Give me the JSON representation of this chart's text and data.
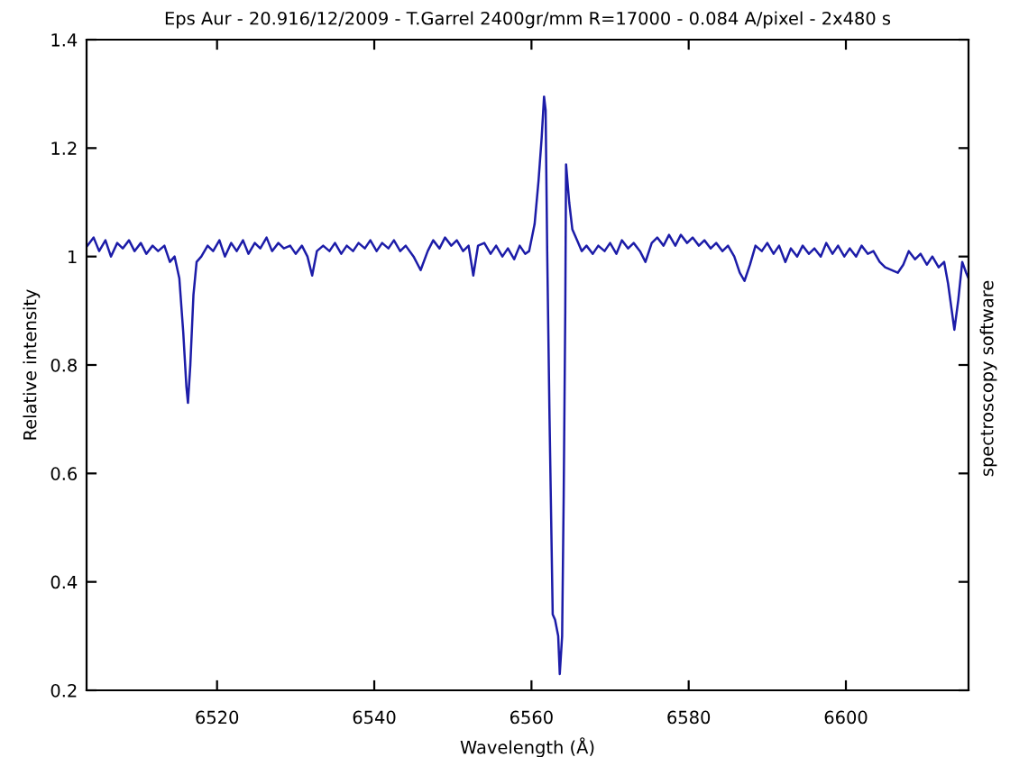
{
  "chart_data": {
    "type": "line",
    "title": "Eps Aur - 20.916/12/2009 - T.Garrel 2400gr/mm R=17000 - 0.084 A/pixel - 2x480 s",
    "xlabel": "Wavelength (Å)",
    "ylabel": "Relative intensity",
    "annotations": [
      "spectroscopy software"
    ],
    "x": [
      6503.5,
      6504.3,
      6505,
      6505.8,
      6506.5,
      6507.3,
      6508,
      6508.8,
      6509.5,
      6510.3,
      6511,
      6511.8,
      6512.5,
      6513.3,
      6514,
      6514.6,
      6515.2,
      6515.7,
      6516.1,
      6516.3,
      6516.6,
      6517.0,
      6517.4,
      6518,
      6518.8,
      6519.5,
      6520.3,
      6521,
      6521.8,
      6522.5,
      6523.3,
      6524,
      6524.8,
      6525.5,
      6526.3,
      6527,
      6527.8,
      6528.5,
      6529.3,
      6530,
      6530.8,
      6531.5,
      6532.1,
      6532.7,
      6533.5,
      6534.3,
      6535,
      6535.8,
      6536.5,
      6537.3,
      6538,
      6538.8,
      6539.5,
      6540.3,
      6541,
      6541.8,
      6542.5,
      6543.3,
      6544,
      6545,
      6545.9,
      6546.8,
      6547.5,
      6548.3,
      6549,
      6549.8,
      6550.5,
      6551.3,
      6552,
      6552.6,
      6553.2,
      6554,
      6554.8,
      6555.5,
      6556.3,
      6557,
      6557.8,
      6558.5,
      6559.2,
      6559.7,
      6560.4,
      6560.9,
      6561.3,
      6561.6,
      6561.8,
      6562.0,
      6562.3,
      6562.7,
      6563.0,
      6563.4,
      6563.6,
      6563.9,
      6564.1,
      6564.3,
      6564.4,
      6564.8,
      6565.2,
      6565.8,
      6566.4,
      6567,
      6567.8,
      6568.5,
      6569.3,
      6570,
      6570.8,
      6571.5,
      6572.3,
      6573,
      6573.8,
      6574.5,
      6575.3,
      6576,
      6576.8,
      6577.5,
      6578.3,
      6579,
      6579.8,
      6580.5,
      6581.3,
      6582,
      6582.8,
      6583.5,
      6584.3,
      6585,
      6585.8,
      6586.5,
      6587.1,
      6587.8,
      6588.5,
      6589.3,
      6590,
      6590.8,
      6591.5,
      6592.3,
      6593,
      6593.8,
      6594.5,
      6595.3,
      6596,
      6596.8,
      6597.5,
      6598.3,
      6599,
      6599.8,
      6600.5,
      6601.3,
      6602,
      6602.8,
      6603.5,
      6604.3,
      6605,
      6605.8,
      6606.6,
      6607.3,
      6608,
      6608.8,
      6609.5,
      6610.3,
      6611,
      6611.8,
      6612.5,
      6613,
      6613.8,
      6614.3,
      6614.8,
      6615.3,
      6615.6
    ],
    "series": [
      {
        "color": "#1c1ca8",
        "values": [
          1.02,
          1.035,
          1.01,
          1.03,
          1.0,
          1.025,
          1.015,
          1.03,
          1.01,
          1.025,
          1.005,
          1.02,
          1.01,
          1.02,
          0.99,
          1.0,
          0.96,
          0.86,
          0.76,
          0.73,
          0.8,
          0.93,
          0.99,
          1.0,
          1.02,
          1.01,
          1.03,
          1.0,
          1.025,
          1.01,
          1.03,
          1.005,
          1.025,
          1.015,
          1.035,
          1.01,
          1.025,
          1.015,
          1.02,
          1.005,
          1.02,
          1.0,
          0.965,
          1.01,
          1.02,
          1.01,
          1.025,
          1.005,
          1.02,
          1.01,
          1.025,
          1.015,
          1.03,
          1.01,
          1.025,
          1.015,
          1.03,
          1.01,
          1.02,
          1.0,
          0.975,
          1.01,
          1.03,
          1.015,
          1.035,
          1.02,
          1.03,
          1.01,
          1.02,
          0.965,
          1.02,
          1.025,
          1.005,
          1.02,
          1.0,
          1.015,
          0.995,
          1.02,
          1.005,
          1.01,
          1.06,
          1.14,
          1.22,
          1.295,
          1.27,
          1.01,
          0.7,
          0.34,
          0.33,
          0.3,
          0.23,
          0.3,
          0.56,
          0.9,
          1.17,
          1.1,
          1.05,
          1.03,
          1.01,
          1.02,
          1.005,
          1.02,
          1.01,
          1.025,
          1.005,
          1.03,
          1.015,
          1.025,
          1.01,
          0.99,
          1.025,
          1.035,
          1.02,
          1.04,
          1.02,
          1.04,
          1.025,
          1.035,
          1.02,
          1.03,
          1.015,
          1.025,
          1.01,
          1.02,
          1.0,
          0.97,
          0.955,
          0.985,
          1.02,
          1.01,
          1.025,
          1.005,
          1.02,
          0.99,
          1.015,
          1.0,
          1.02,
          1.005,
          1.015,
          1.0,
          1.025,
          1.005,
          1.02,
          1.0,
          1.015,
          1.0,
          1.02,
          1.005,
          1.01,
          0.99,
          0.98,
          0.975,
          0.97,
          0.985,
          1.01,
          0.995,
          1.005,
          0.985,
          1.0,
          0.98,
          0.99,
          0.95,
          0.865,
          0.92,
          0.99,
          0.97,
          0.96
        ]
      }
    ],
    "xlim": [
      6503.4,
      6615.6
    ],
    "xticks": [
      6520,
      6540,
      6560,
      6580,
      6600
    ],
    "ylim": [
      0.2,
      1.4
    ],
    "yticks": [
      0.2,
      0.4,
      0.6,
      0.8,
      1,
      1.2,
      1.4
    ],
    "grid": false,
    "legend": false,
    "marker": "none",
    "line_style": "solid"
  }
}
